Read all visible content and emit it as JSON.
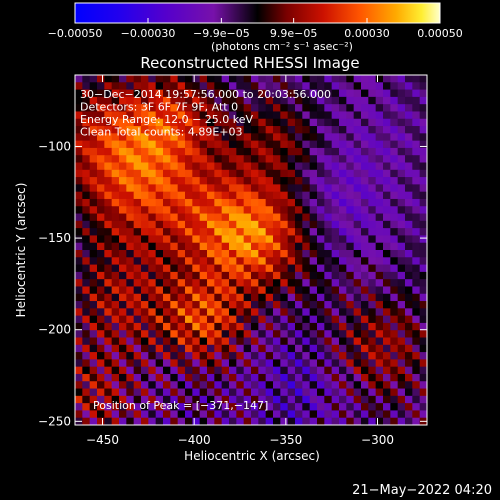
{
  "chart_data": {
    "type": "heatmap",
    "title": "Reconstructed RHESSI Image",
    "xlabel": "Heliocentric X (arcsec)",
    "ylabel": "Heliocentric Y (arcsec)",
    "xlim": [
      -465,
      -273
    ],
    "ylim": [
      -252,
      -61
    ],
    "x_ticks": [
      -450,
      -400,
      -350,
      -300
    ],
    "y_ticks": [
      -100,
      -150,
      -200,
      -250
    ],
    "x_tick_labels": [
      "−450",
      "−400",
      "−350",
      "−300"
    ],
    "y_tick_labels": [
      "−100",
      "−150",
      "−200",
      "−250"
    ],
    "colorbar": {
      "range": [
        -0.0005,
        0.0005
      ],
      "ticks": [
        -0.0005,
        -0.0003,
        -9.9e-05,
        9.9e-05,
        0.0003,
        0.0005
      ],
      "tick_labels": [
        "−0.00050",
        "−0.00030",
        "−9.9e−05",
        "9.9e−05",
        "0.00030",
        "0.00050"
      ],
      "unit_label": "(photons cm⁻² s⁻¹ asec⁻²)"
    },
    "annotations": [
      "30−Dec−2014 19:57:56.000 to 20:03:56.000",
      "Detectors: 3F 6F 7F 9F, Att 0",
      "Energy Range: 12.0 − 25.0 keV",
      "Clean     Total counts: 4.89E+03"
    ],
    "peak_label": "Position of Peak = [−371,−147]",
    "peak": {
      "x": -371,
      "y": -147,
      "value": 0.0005
    },
    "grid_cells": [
      48,
      48
    ],
    "sources": [
      {
        "x": -371,
        "y": -147,
        "amp": 0.00042,
        "sigma": 22
      },
      {
        "x": -425,
        "y": -125,
        "amp": 0.00026,
        "sigma": 24
      },
      {
        "x": -395,
        "y": -195,
        "amp": 0.00028,
        "sigma": 16
      },
      {
        "x": -445,
        "y": -95,
        "amp": 0.00022,
        "sigma": 22
      },
      {
        "x": -410,
        "y": -85,
        "amp": 0.0002,
        "sigma": 18
      },
      {
        "x": -440,
        "y": -185,
        "amp": 0.00018,
        "sigma": 20
      },
      {
        "x": -300,
        "y": -210,
        "amp": 0.00017,
        "sigma": 20
      },
      {
        "x": -355,
        "y": -95,
        "amp": 0.00014,
        "sigma": 16
      },
      {
        "x": -455,
        "y": -235,
        "amp": 0.00016,
        "sigma": 16
      },
      {
        "x": -320,
        "y": -130,
        "amp": -0.0001,
        "sigma": 22
      },
      {
        "x": -340,
        "y": -230,
        "amp": -9e-05,
        "sigma": 20
      },
      {
        "x": -300,
        "y": -90,
        "amp": -4e-05,
        "sigma": 18
      }
    ]
  },
  "footer": {
    "timestamp": "21−May−2022 04:20"
  }
}
